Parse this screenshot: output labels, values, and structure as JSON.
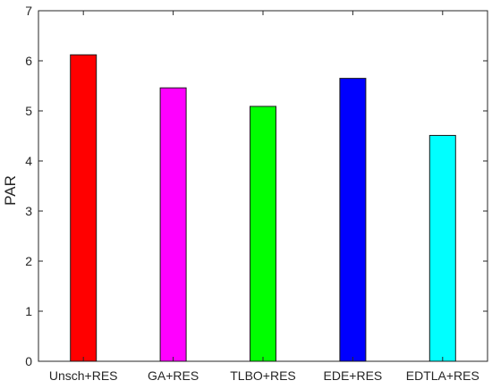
{
  "chart_data": {
    "type": "bar",
    "title": "",
    "xlabel": "",
    "ylabel": "PAR",
    "ylim": [
      0,
      7
    ],
    "yticks": [
      "0",
      "1",
      "2",
      "3",
      "4",
      "5",
      "6",
      "7"
    ],
    "grid": false,
    "categories": [
      "Unsch+RES",
      "GA+RES",
      "TLBO+RES",
      "EDE+RES",
      "EDTLA+RES"
    ],
    "values": [
      6.12,
      5.46,
      5.09,
      5.65,
      4.51
    ],
    "colors": [
      "#ff0000",
      "#ff00ff",
      "#00ff00",
      "#0000ff",
      "#00ffff"
    ]
  }
}
